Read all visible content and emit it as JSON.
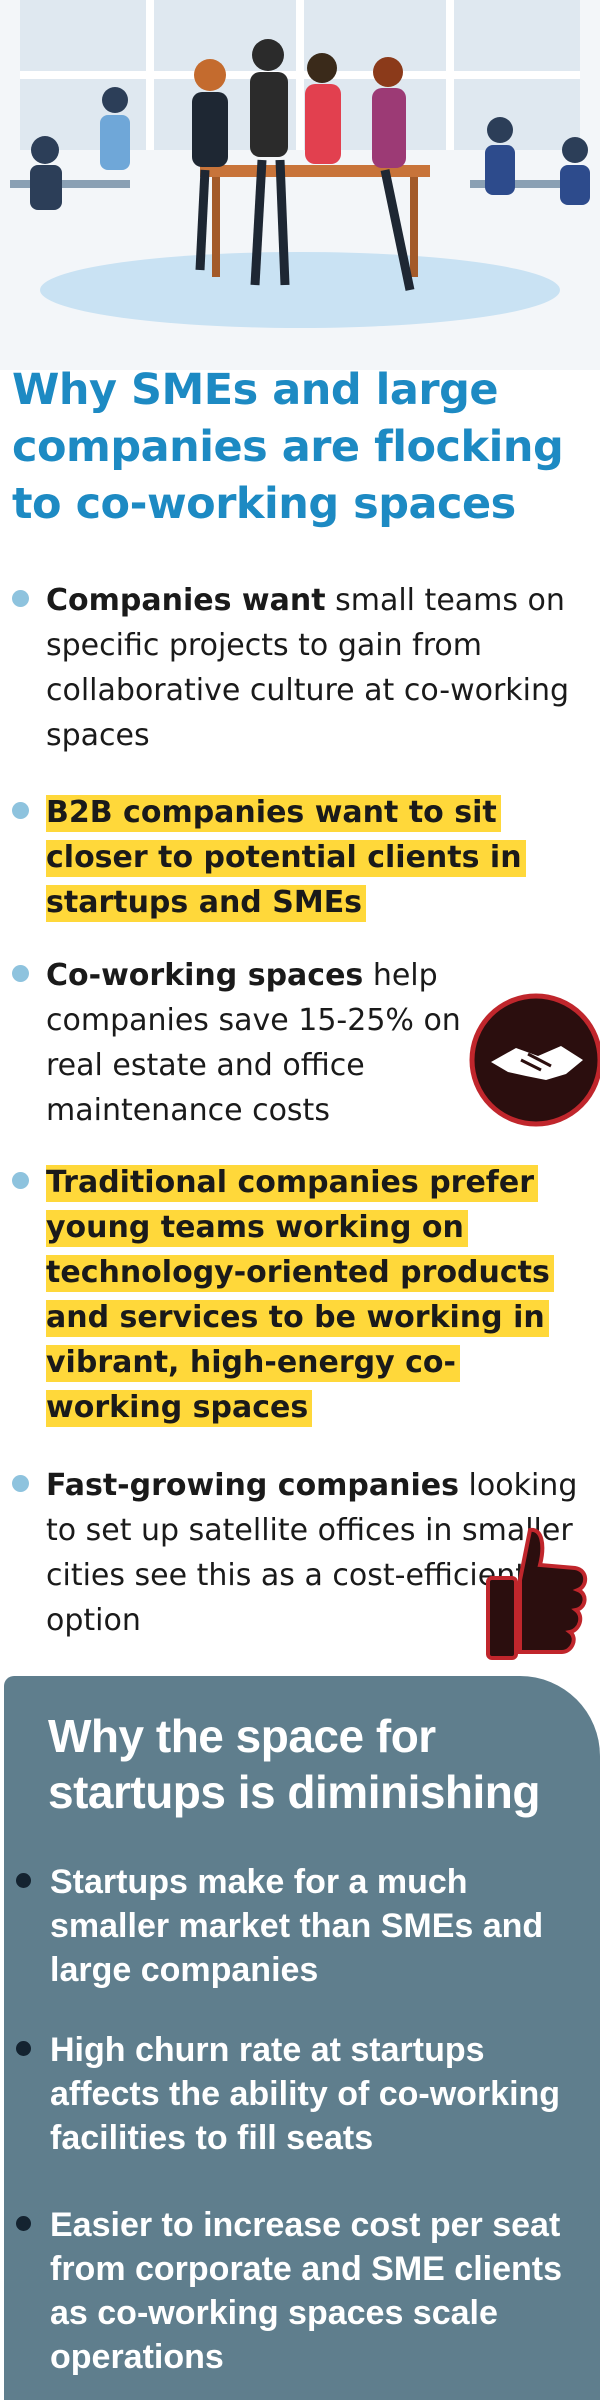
{
  "title": "Why SMEs and large companies are flocking to co-working spaces",
  "bullets": [
    {
      "bold": "Companies want",
      "text": "small teams on specific projects to gain from collaborative culture at co-working spaces",
      "highlight": false
    },
    {
      "bold": "B2B companies want to sit closer to potential clients in startups and SMEs",
      "highlight": true
    },
    {
      "bold": "Co-working spaces",
      "text": "help companies save 15-25% on real estate and office maintenance costs",
      "highlight": false
    },
    {
      "bold": "Traditional companies prefer young teams working on technology-oriented products and services to be working in vibrant, high-energy co-working spaces",
      "highlight": true
    },
    {
      "bold": "Fast-growing companies",
      "text": "looking to set up satellite offices in smaller cities see this as a cost-efficient option",
      "highlight": false
    }
  ],
  "startups": {
    "title": "Why the space for startups is diminishing",
    "bullets": [
      "Startups make for a much smaller market than SMEs and large companies",
      "High churn rate at startups affects the ability of co-working facilities to fill seats",
      "Easier to increase cost per seat from corporate and SME clients as co-working spaces scale operations"
    ]
  }
}
